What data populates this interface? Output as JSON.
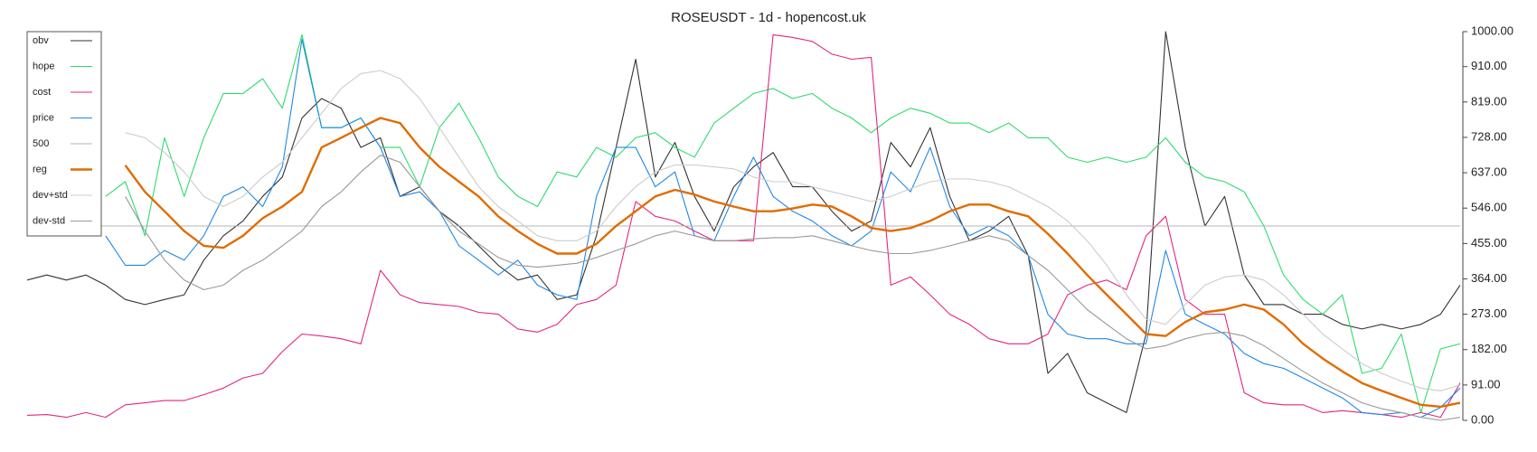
{
  "chart_data": {
    "type": "line",
    "title": "ROSEUSDT - 1d - hopencost.uk",
    "legend": "upper left",
    "ylim": [
      0,
      1000
    ],
    "yticks": [
      {
        "value": 0,
        "label": "0.00"
      },
      {
        "value": 91,
        "label": "91.00"
      },
      {
        "value": 182,
        "label": "182.00"
      },
      {
        "value": 273,
        "label": "273.00"
      },
      {
        "value": 364,
        "label": "364.00"
      },
      {
        "value": 455,
        "label": "455.00"
      },
      {
        "value": 546,
        "label": "546.00"
      },
      {
        "value": 637,
        "label": "637.00"
      },
      {
        "value": 728,
        "label": "728.00"
      },
      {
        "value": 819,
        "label": "819.00"
      },
      {
        "value": 910,
        "label": "910.00"
      },
      {
        "value": 1000,
        "label": "1000.00"
      }
    ],
    "series": [
      {
        "name": "obv",
        "color": "#333333",
        "values": [
          361,
          374,
          361,
          374,
          348,
          311,
          298,
          311,
          323,
          412,
          475,
          513,
          576,
          626,
          778,
          828,
          803,
          702,
          727,
          576,
          601,
          538,
          500,
          449,
          399,
          361,
          374,
          311,
          323,
          475,
          702,
          929,
          626,
          715,
          576,
          487,
          601,
          652,
          689,
          601,
          601,
          538,
          487,
          513,
          715,
          652,
          753,
          576,
          462,
          487,
          525,
          424,
          121,
          172,
          71,
          45,
          20,
          222,
          1000,
          702,
          500,
          576,
          374,
          298,
          298,
          273,
          273,
          247,
          235,
          247,
          235,
          247,
          273,
          348
        ]
      },
      {
        "name": "hope",
        "color": "#2edb6e",
        "values": [
          null,
          null,
          null,
          null,
          576,
          614,
          475,
          727,
          576,
          727,
          841,
          841,
          879,
          803,
          992,
          753,
          753,
          778,
          702,
          702,
          601,
          753,
          816,
          727,
          626,
          576,
          550,
          639,
          626,
          702,
          677,
          727,
          740,
          702,
          677,
          765,
          803,
          841,
          854,
          828,
          841,
          803,
          778,
          740,
          778,
          803,
          790,
          765,
          765,
          740,
          765,
          727,
          727,
          677,
          664,
          677,
          664,
          677,
          727,
          664,
          626,
          614,
          588,
          500,
          374,
          311,
          273,
          323,
          121,
          134,
          222,
          20,
          184,
          197
        ]
      },
      {
        "name": "cost",
        "color": "#e3267f",
        "values": [
          13,
          15,
          8,
          20,
          8,
          40,
          45,
          51,
          51,
          66,
          83,
          109,
          121,
          177,
          222,
          217,
          210,
          197,
          386,
          323,
          303,
          298,
          293,
          278,
          273,
          235,
          227,
          247,
          298,
          311,
          348,
          563,
          525,
          513,
          487,
          462,
          462,
          462,
          992,
          985,
          975,
          942,
          929,
          934,
          348,
          369,
          323,
          273,
          247,
          210,
          197,
          197,
          222,
          323,
          348,
          361,
          336,
          475,
          525,
          311,
          273,
          273,
          71,
          45,
          40,
          40,
          20,
          25,
          20,
          15,
          8,
          20,
          8,
          96
        ]
      },
      {
        "name": "price",
        "color": "#1e88e5",
        "values": [
          null,
          null,
          null,
          null,
          475,
          399,
          399,
          437,
          412,
          475,
          576,
          601,
          550,
          652,
          980,
          753,
          753,
          778,
          702,
          576,
          588,
          538,
          449,
          412,
          374,
          412,
          348,
          323,
          311,
          576,
          702,
          702,
          601,
          639,
          475,
          462,
          576,
          677,
          576,
          538,
          513,
          475,
          449,
          487,
          639,
          588,
          702,
          550,
          475,
          500,
          475,
          424,
          273,
          222,
          210,
          210,
          197,
          197,
          437,
          273,
          247,
          222,
          172,
          146,
          134,
          109,
          83,
          58,
          20,
          15,
          20,
          8,
          33,
          83
        ]
      },
      {
        "name": "500",
        "color": "#b5b5b5",
        "values": [
          500,
          500,
          500,
          500,
          500,
          500,
          500,
          500,
          500,
          500,
          500,
          500,
          500,
          500,
          500,
          500,
          500,
          500,
          500,
          500,
          500,
          500,
          500,
          500,
          500,
          500,
          500,
          500,
          500,
          500,
          500,
          500,
          500,
          500,
          500,
          500,
          500,
          500,
          500,
          500,
          500,
          500,
          500,
          500,
          500,
          500,
          500,
          500,
          500,
          500,
          500,
          500,
          500,
          500,
          500,
          500,
          500,
          500,
          500,
          500,
          500,
          500,
          500,
          500,
          500,
          500,
          500,
          500,
          500,
          500,
          500,
          500,
          500,
          500
        ]
      },
      {
        "name": "reg",
        "color": "#e06c00",
        "values": [
          null,
          null,
          null,
          null,
          null,
          656,
          588,
          538,
          487,
          449,
          444,
          475,
          520,
          550,
          588,
          702,
          727,
          753,
          778,
          765,
          702,
          652,
          614,
          576,
          525,
          487,
          454,
          429,
          429,
          454,
          500,
          538,
          576,
          593,
          581,
          563,
          550,
          538,
          538,
          545,
          555,
          550,
          525,
          495,
          487,
          495,
          513,
          538,
          555,
          555,
          538,
          525,
          480,
          429,
          374,
          323,
          273,
          222,
          217,
          253,
          278,
          285,
          298,
          285,
          247,
          197,
          159,
          126,
          96,
          76,
          58,
          40,
          35,
          45
        ]
      },
      {
        "name": "dev+std",
        "color": "#cccccc",
        "values": [
          null,
          null,
          null,
          null,
          null,
          740,
          727,
          689,
          639,
          576,
          550,
          576,
          626,
          664,
          727,
          790,
          854,
          892,
          900,
          879,
          828,
          753,
          677,
          601,
          550,
          513,
          475,
          462,
          462,
          487,
          550,
          601,
          639,
          657,
          657,
          652,
          647,
          626,
          614,
          614,
          601,
          588,
          576,
          563,
          576,
          596,
          614,
          621,
          621,
          614,
          601,
          576,
          550,
          513,
          462,
          399,
          323,
          260,
          247,
          298,
          348,
          369,
          374,
          361,
          323,
          273,
          222,
          184,
          146,
          121,
          101,
          83,
          76,
          91
        ]
      },
      {
        "name": "dev-std",
        "color": "#999999",
        "values": [
          null,
          null,
          null,
          null,
          null,
          576,
          487,
          412,
          361,
          336,
          348,
          386,
          412,
          449,
          487,
          550,
          588,
          639,
          682,
          664,
          601,
          538,
          487,
          454,
          419,
          399,
          394,
          399,
          404,
          419,
          437,
          454,
          475,
          487,
          475,
          462,
          462,
          467,
          470,
          470,
          475,
          462,
          449,
          437,
          429,
          429,
          437,
          449,
          462,
          475,
          462,
          424,
          386,
          336,
          285,
          247,
          210,
          184,
          192,
          210,
          222,
          227,
          217,
          192,
          159,
          126,
          96,
          71,
          45,
          30,
          20,
          8,
          0,
          8
        ]
      }
    ]
  }
}
